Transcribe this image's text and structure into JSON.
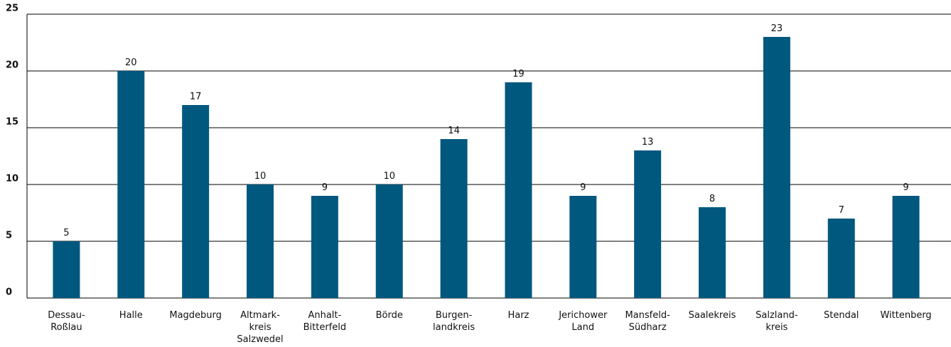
{
  "chart_data": {
    "type": "bar",
    "categories": [
      "Dessau-\nRoßlau",
      "Halle",
      "Magdeburg",
      "Altmark-\nkreis\nSalzwedel",
      "Anhalt-\nBitterfeld",
      "Börde",
      "Burgen-\nlandkreis",
      "Harz",
      "Jerichower\nLand",
      "Mansfeld-\nSüdharz",
      "Saalekreis",
      "Salzland-\nkreis",
      "Stendal",
      "Wittenberg"
    ],
    "values": [
      5,
      20,
      17,
      10,
      9,
      10,
      14,
      19,
      9,
      13,
      8,
      23,
      7,
      9
    ],
    "color": "#00587f",
    "ylim": [
      0,
      25
    ],
    "yticks": [
      0,
      5,
      10,
      15,
      20,
      25
    ],
    "grid": true
  }
}
